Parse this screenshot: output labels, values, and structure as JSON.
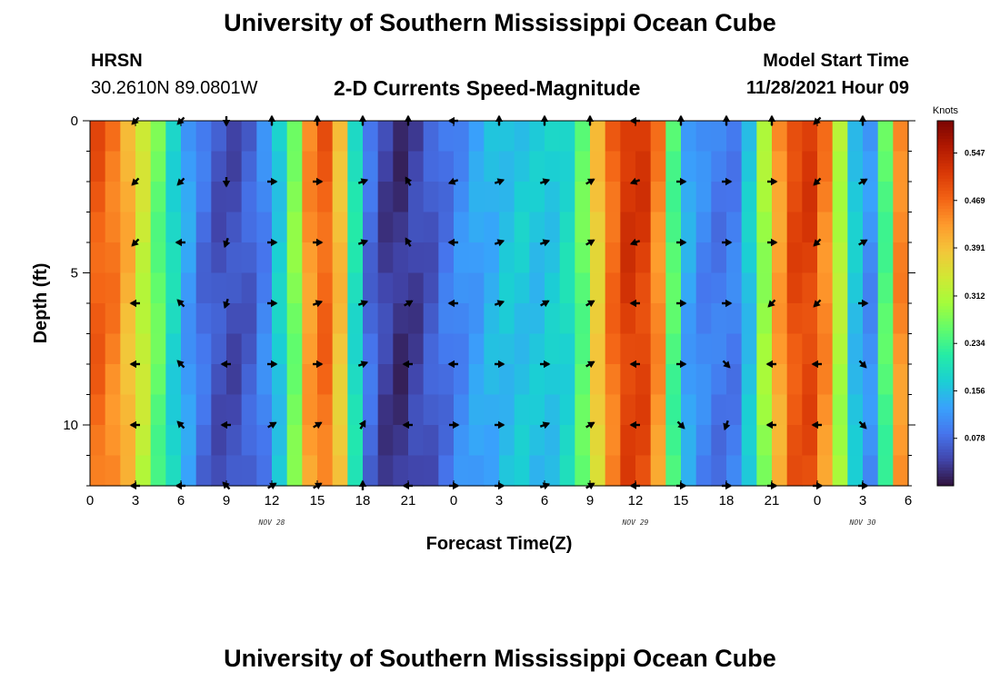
{
  "page": {
    "title": "University of Southern Mississippi Ocean Cube",
    "station": "HRSN",
    "coordinates": "30.2610N  89.0801W",
    "subtitle": "2-D Currents Speed-Magnitude",
    "model_label": "Model Start Time",
    "model_time": "11/28/2021 Hour 09",
    "footer_title": "University of Southern Mississippi Ocean Cube"
  },
  "colors": {
    "arrow": "#000000",
    "axis": "#000000",
    "colormap": [
      "#30123b",
      "#4145ab",
      "#4675ed",
      "#39a2fc",
      "#1bcfd4",
      "#24eca6",
      "#61fc6c",
      "#a4fc3b",
      "#d1e834",
      "#f3c63a",
      "#fe9b2d",
      "#f36315",
      "#d93806",
      "#b11901",
      "#7a0402"
    ]
  },
  "chart_data": {
    "type": "heatmap",
    "title": "2-D Currents Speed-Magnitude",
    "xlabel": "Forecast Time(Z)",
    "ylabel": "Depth (ft)",
    "x_ticks": [
      "0",
      "3",
      "6",
      "9",
      "12",
      "15",
      "18",
      "21",
      "0",
      "3",
      "6",
      "9",
      "12",
      "15",
      "18",
      "21",
      "0",
      "3",
      "6"
    ],
    "x_range_hours": [
      0,
      54
    ],
    "date_labels": [
      {
        "text": "NOV 28",
        "hour": 12
      },
      {
        "text": "NOV 29",
        "hour": 36
      },
      {
        "text": "NOV 30",
        "hour": 51
      }
    ],
    "y_ticks": [
      "0",
      "5",
      "10"
    ],
    "y_range_ft": [
      0,
      12
    ],
    "colorbar": {
      "label": "Knots",
      "ticks": [
        "0.547",
        "0.469",
        "0.391",
        "0.312",
        "0.234",
        "0.156",
        "0.078"
      ],
      "range": [
        0.0,
        0.6
      ]
    },
    "speed_profile_knots": [
      {
        "hour": 0,
        "speed": 0.5
      },
      {
        "hour": 2,
        "speed": 0.45
      },
      {
        "hour": 4,
        "speed": 0.3
      },
      {
        "hour": 6,
        "speed": 0.15
      },
      {
        "hour": 8,
        "speed": 0.06
      },
      {
        "hour": 10,
        "speed": 0.05
      },
      {
        "hour": 12,
        "speed": 0.12
      },
      {
        "hour": 13.5,
        "speed": 0.28
      },
      {
        "hour": 15,
        "speed": 0.52
      },
      {
        "hour": 16.5,
        "speed": 0.4
      },
      {
        "hour": 18,
        "speed": 0.1
      },
      {
        "hour": 20,
        "speed": 0.02
      },
      {
        "hour": 22,
        "speed": 0.05
      },
      {
        "hour": 24,
        "speed": 0.1
      },
      {
        "hour": 26,
        "speed": 0.14
      },
      {
        "hour": 28,
        "speed": 0.17
      },
      {
        "hour": 30,
        "speed": 0.16
      },
      {
        "hour": 32,
        "speed": 0.2
      },
      {
        "hour": 34,
        "speed": 0.45
      },
      {
        "hour": 36,
        "speed": 0.55
      },
      {
        "hour": 37.5,
        "speed": 0.45
      },
      {
        "hour": 39,
        "speed": 0.15
      },
      {
        "hour": 41,
        "speed": 0.09
      },
      {
        "hour": 43,
        "speed": 0.1
      },
      {
        "hour": 44.5,
        "speed": 0.3
      },
      {
        "hour": 46,
        "speed": 0.5
      },
      {
        "hour": 48,
        "speed": 0.52
      },
      {
        "hour": 50,
        "speed": 0.25
      },
      {
        "hour": 51,
        "speed": 0.08
      },
      {
        "hour": 52,
        "speed": 0.15
      },
      {
        "hour": 54,
        "speed": 0.55
      }
    ],
    "arrow_hours": [
      3,
      6,
      9,
      12,
      15,
      18,
      21,
      24,
      27,
      30,
      33,
      36,
      39,
      42,
      45,
      48,
      51
    ],
    "arrow_depths_ft": [
      0,
      2,
      4,
      6,
      8,
      10,
      12
    ],
    "arrow_direction_deg": [
      [
        225,
        225,
        180,
        0,
        0,
        0,
        0,
        270,
        0,
        0,
        0,
        270,
        0,
        0,
        0,
        225,
        0
      ],
      [
        225,
        225,
        180,
        90,
        90,
        70,
        330,
        250,
        70,
        70,
        60,
        250,
        90,
        90,
        90,
        225,
        60
      ],
      [
        225,
        270,
        200,
        90,
        90,
        70,
        330,
        270,
        70,
        70,
        60,
        250,
        90,
        90,
        90,
        225,
        60
      ],
      [
        270,
        315,
        200,
        90,
        70,
        70,
        60,
        270,
        70,
        60,
        60,
        270,
        90,
        90,
        225,
        225,
        90
      ],
      [
        270,
        315,
        270,
        90,
        90,
        70,
        270,
        270,
        90,
        90,
        60,
        270,
        90,
        135,
        270,
        270,
        135
      ],
      [
        270,
        315,
        270,
        60,
        60,
        30,
        270,
        90,
        90,
        70,
        60,
        270,
        135,
        200,
        270,
        270,
        135
      ],
      [
        270,
        270,
        315,
        60,
        60,
        0,
        270,
        90,
        90,
        70,
        60,
        270,
        90,
        90,
        90,
        90,
        90
      ]
    ]
  }
}
